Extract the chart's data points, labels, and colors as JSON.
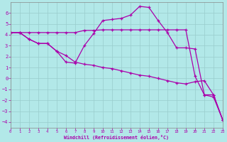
{
  "xlabel": "Windchill (Refroidissement éolien,°C)",
  "background_color": "#b2e8e8",
  "grid_color": "#99cccc",
  "line_color": "#aa00aa",
  "marker": "+",
  "xlim": [
    0,
    23
  ],
  "ylim": [
    -4.5,
    7.0
  ],
  "yticks": [
    -4,
    -3,
    -2,
    -1,
    0,
    1,
    2,
    3,
    4,
    5,
    6
  ],
  "xticks": [
    0,
    1,
    2,
    3,
    4,
    5,
    6,
    7,
    8,
    9,
    10,
    11,
    12,
    13,
    14,
    15,
    16,
    17,
    18,
    19,
    20,
    21,
    22,
    23
  ],
  "line1_x": [
    0,
    1,
    2,
    3,
    4,
    5,
    6,
    7,
    8,
    9,
    10,
    11,
    12,
    13,
    14,
    15,
    16,
    17,
    18,
    19,
    20,
    21,
    22,
    23
  ],
  "line1_y": [
    4.2,
    4.2,
    4.2,
    4.2,
    4.2,
    4.2,
    4.2,
    4.2,
    4.4,
    4.4,
    4.45,
    4.45,
    4.45,
    4.45,
    4.45,
    4.45,
    4.45,
    4.45,
    4.45,
    4.45,
    0.2,
    -1.5,
    -1.5,
    -3.8
  ],
  "line2_x": [
    0,
    1,
    2,
    3,
    4,
    5,
    6,
    7,
    8,
    9,
    10,
    11,
    12,
    13,
    14,
    15,
    16,
    17,
    18,
    19,
    20,
    21,
    22,
    23
  ],
  "line2_y": [
    4.2,
    4.2,
    3.6,
    3.2,
    3.2,
    2.5,
    1.5,
    1.4,
    3.0,
    4.1,
    5.3,
    5.4,
    5.5,
    5.8,
    6.6,
    6.5,
    5.3,
    4.2,
    2.8,
    2.8,
    2.7,
    -1.5,
    -1.7,
    -3.8
  ],
  "line3_x": [
    0,
    1,
    2,
    3,
    4,
    5,
    6,
    7,
    8,
    9,
    10,
    11,
    12,
    13,
    14,
    15,
    16,
    17,
    18,
    19,
    20,
    21,
    22,
    23
  ],
  "line3_y": [
    4.2,
    4.2,
    3.6,
    3.2,
    3.2,
    2.5,
    2.1,
    1.5,
    1.3,
    1.2,
    1.0,
    0.9,
    0.7,
    0.5,
    0.3,
    0.2,
    0.0,
    -0.2,
    -0.4,
    -0.5,
    -0.3,
    -0.2,
    -1.5,
    -3.8
  ]
}
